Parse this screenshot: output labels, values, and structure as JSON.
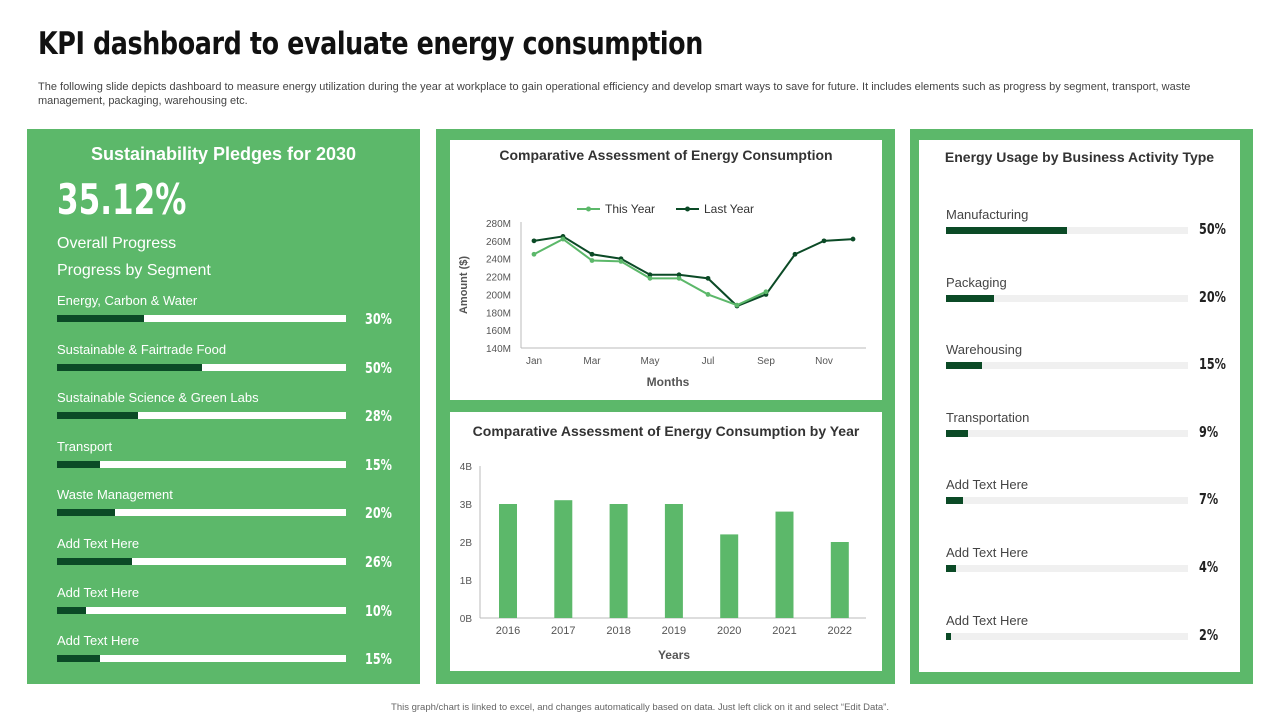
{
  "header": {
    "title": "KPI dashboard to evaluate energy consumption",
    "subtitle": "The following slide depicts dashboard to measure energy utilization during the year at workplace to gain operational efficiency and develop smart ways to save for future. It includes elements such as progress by segment, transport, waste management, packaging, warehousing etc."
  },
  "footer": {
    "note": "This graph/chart is linked to excel, and changes automatically based on data. Just left click on it and select “Edit Data”."
  },
  "pledges": {
    "heading": "Sustainability Pledges for 2030",
    "overall_value": "35.12%",
    "overall_label": "Overall Progress",
    "segment_heading": "Progress by Segment",
    "segments": [
      {
        "label": "Energy, Carbon & Water",
        "pct": "30%",
        "value": 30
      },
      {
        "label": "Sustainable & Fairtrade Food",
        "pct": "50%",
        "value": 50
      },
      {
        "label": "Sustainable Science & Green Labs",
        "pct": "28%",
        "value": 28
      },
      {
        "label": "Transport",
        "pct": "15%",
        "value": 15
      },
      {
        "label": "Waste Management",
        "pct": "20%",
        "value": 20
      },
      {
        "label": "Add Text Here",
        "pct": "26%",
        "value": 26
      },
      {
        "label": "Add Text Here",
        "pct": "10%",
        "value": 10
      },
      {
        "label": "Add Text Here",
        "pct": "15%",
        "value": 15
      }
    ]
  },
  "usage": {
    "title": "Energy Usage by Business Activity  Type",
    "items": [
      {
        "label": "Manufacturing",
        "pct": "50%",
        "value": 50
      },
      {
        "label": "Packaging",
        "pct": "20%",
        "value": 20
      },
      {
        "label": "Warehousing",
        "pct": "15%",
        "value": 15
      },
      {
        "label": "Transportation",
        "pct": "9%",
        "value": 9
      },
      {
        "label": "Add Text Here",
        "pct": "7%",
        "value": 7
      },
      {
        "label": "Add Text Here",
        "pct": "4%",
        "value": 4
      },
      {
        "label": "Add Text Here",
        "pct": "2%",
        "value": 2
      }
    ]
  },
  "colors": {
    "panel_green": "#5cb86a",
    "dark_green": "#0b4a26",
    "this_year": "#5cb86a",
    "last_year": "#0b4a26",
    "bar": "#5cb86a"
  },
  "chart_data": [
    {
      "type": "line",
      "title": "Comparative Assessment of Energy Consumption",
      "xlabel": "Months",
      "ylabel": "Amount ($)",
      "x": [
        "Jan",
        "Feb",
        "Mar",
        "Apr",
        "May",
        "Jun",
        "Jul",
        "Aug",
        "Sep",
        "Oct",
        "Nov",
        "Dec"
      ],
      "x_tick_labels": [
        "Jan",
        "Mar",
        "May",
        "Jul",
        "Sep",
        "Nov"
      ],
      "y_tick_labels": [
        "140M",
        "160M",
        "180M",
        "200M",
        "220M",
        "240M",
        "260M",
        "280M"
      ],
      "ylim": [
        140,
        280
      ],
      "y_unit": "M",
      "legend": "top-center",
      "grid": false,
      "series": [
        {
          "name": "This Year",
          "values": [
            245,
            262,
            238,
            237,
            218,
            218,
            200,
            188,
            203,
            null,
            null,
            null
          ]
        },
        {
          "name": "Last Year",
          "values": [
            260,
            265,
            245,
            240,
            222,
            222,
            218,
            187,
            200,
            245,
            260,
            262
          ]
        }
      ]
    },
    {
      "type": "bar",
      "title": "Comparative Assessment of Energy Consumption by Year",
      "xlabel": "Years",
      "ylabel": "",
      "categories": [
        "2016",
        "2017",
        "2018",
        "2019",
        "2020",
        "2021",
        "2022"
      ],
      "values": [
        3.0,
        3.1,
        3.0,
        3.0,
        2.2,
        2.8,
        2.0
      ],
      "y_tick_labels": [
        "0B",
        "1B",
        "2B",
        "3B",
        "4B"
      ],
      "ylim": [
        0,
        4
      ],
      "y_unit": "B",
      "grid": false
    }
  ]
}
